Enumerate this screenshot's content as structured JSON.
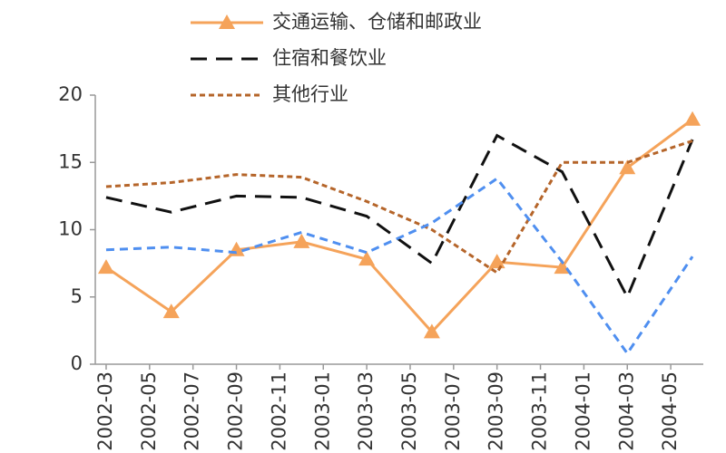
{
  "chart_data": {
    "type": "line",
    "categories": [
      "2002-03",
      "2002-05",
      "2002-07",
      "2002-09",
      "2002-11",
      "2003-01",
      "2003-03",
      "2003-05",
      "2003-07",
      "2003-09",
      "2003-11",
      "2004-01",
      "2004-03",
      "2004-05"
    ],
    "x": [
      0,
      1.5,
      3,
      4.5,
      6,
      7.5,
      9,
      10.5,
      12,
      13.5
    ],
    "xlim": [
      -0.25,
      13.75
    ],
    "series": [
      {
        "name": "交通运输、仓储和邮政业",
        "color": "#f5a35a",
        "dash": "",
        "marker": "triangle",
        "values": [
          7.2,
          3.9,
          8.5,
          9.1,
          7.8,
          2.4,
          7.6,
          7.2,
          14.6,
          18.2
        ]
      },
      {
        "name": "住宿和餐饮业",
        "color": "#111111",
        "dash": "18,10",
        "values": [
          12.4,
          11.3,
          12.5,
          12.4,
          11.0,
          7.5,
          17.0,
          14.3,
          5.0,
          16.7
        ]
      },
      {
        "name": "其他行业",
        "color": "#b5652a",
        "dash": "6,4",
        "values": [
          13.2,
          13.5,
          14.1,
          13.9,
          12.1,
          10.0,
          6.8,
          15.0,
          15.0,
          16.6
        ]
      },
      {
        "color": "#4f8ff0",
        "dash": "9,6",
        "values": [
          8.5,
          8.7,
          8.3,
          9.8,
          8.3,
          10.5,
          13.8,
          7.6,
          0.8,
          8.0
        ]
      }
    ],
    "ylim": [
      0,
      20
    ],
    "yticks": [
      0,
      5,
      10,
      15,
      20
    ],
    "grid": false
  }
}
